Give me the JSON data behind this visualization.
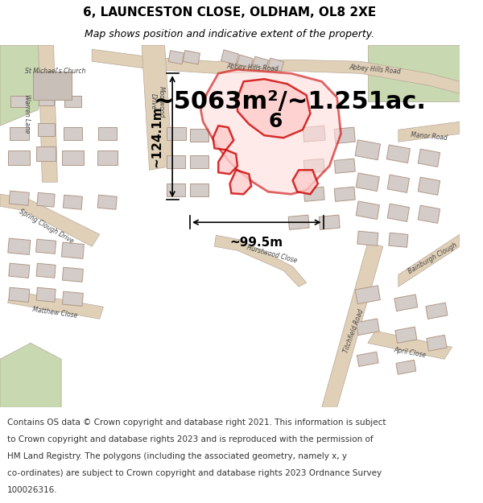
{
  "title_line1": "6, LAUNCESTON CLOSE, OLDHAM, OL8 2XE",
  "title_line2": "Map shows position and indicative extent of the property.",
  "area_text": "~5063m²/~1.251ac.",
  "dim_horizontal": "~99.5m",
  "dim_vertical": "~124.1m",
  "label_number": "6",
  "footer_lines": [
    "Contains OS data © Crown copyright and database right 2021. This information is subject",
    "to Crown copyright and database rights 2023 and is reproduced with the permission of",
    "HM Land Registry. The polygons (including the associated geometry, namely x, y",
    "co-ordinates) are subject to Crown copyright and database rights 2023 Ordnance Survey",
    "100026316."
  ],
  "map_bg_color": "#f0ede8",
  "road_color": "#e0d0b8",
  "building_fill_color": "#d4ccc8",
  "building_edge_color": "#b09888",
  "green_area_color": "#c8d8b0",
  "highlight_outline_color": "#cc0000",
  "highlight_fill_color": "#ffdddd",
  "highlight_inner_fill": "#ffcccc",
  "title_fontsize": 11,
  "subtitle_fontsize": 9,
  "area_fontsize": 22,
  "footer_fontsize": 7.5,
  "label_fontsize": 18,
  "dim_fontsize": 11,
  "road_label_fontsize": 5.5,
  "fig_width": 6.0,
  "fig_height": 6.25
}
